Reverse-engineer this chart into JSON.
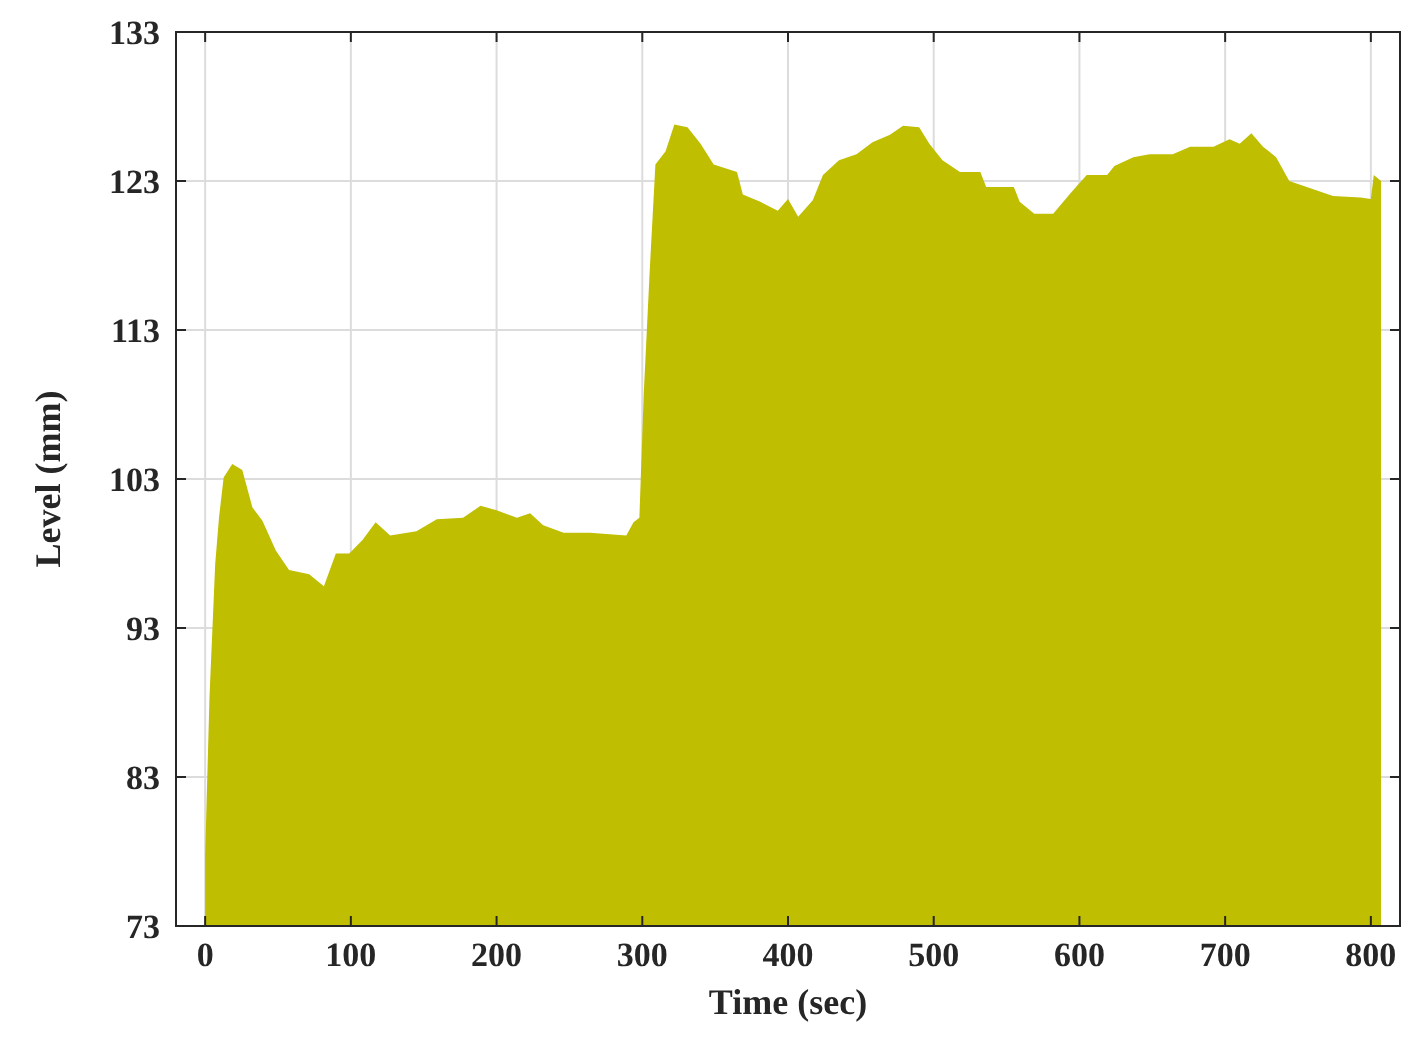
{
  "chart_data": {
    "type": "area",
    "xlabel": "Time (sec)",
    "ylabel": "Level (mm)",
    "xlim": [
      -20,
      820
    ],
    "ylim": [
      73,
      133
    ],
    "xticks": [
      0,
      100,
      200,
      300,
      400,
      500,
      600,
      700,
      800
    ],
    "yticks": [
      73,
      83,
      93,
      103,
      113,
      123,
      133
    ],
    "grid": true,
    "series": [
      {
        "color": "#c0be00",
        "x": [
          0,
          3,
          6.9,
          9.5,
          12.7,
          18.6,
          25.5,
          32.4,
          39.3,
          48.5,
          57.6,
          71.4,
          81.5,
          89.7,
          98.9,
          108,
          117,
          127,
          145,
          159,
          177,
          189,
          200,
          214,
          223,
          232,
          246,
          264,
          289,
          294,
          298,
          301,
          305,
          309,
          316,
          322,
          331,
          340,
          349,
          365,
          369,
          381,
          393,
          400,
          407,
          417,
          424,
          435,
          447,
          458,
          470,
          479,
          490,
          497,
          506,
          518,
          532,
          536,
          555,
          559,
          569,
          582,
          594,
          605,
          619,
          624,
          637,
          648,
          664,
          676,
          692,
          703,
          710,
          718,
          726,
          735,
          744,
          756,
          765,
          774,
          793,
          800,
          802,
          807
        ],
        "values": [
          77.8,
          88.4,
          97.3,
          100.4,
          103.1,
          104.0,
          103.6,
          101.1,
          100.2,
          98.2,
          96.9,
          96.6,
          95.8,
          98.0,
          98.0,
          98.9,
          100.1,
          99.2,
          99.5,
          100.3,
          100.4,
          101.2,
          100.9,
          100.4,
          100.7,
          99.9,
          99.4,
          99.4,
          99.2,
          100.1,
          100.4,
          108.7,
          116.8,
          124.1,
          125.0,
          126.8,
          126.6,
          125.5,
          124.1,
          123.6,
          122.1,
          121.6,
          121.0,
          121.8,
          120.6,
          121.7,
          123.4,
          124.4,
          124.8,
          125.6,
          126.1,
          126.7,
          126.6,
          125.5,
          124.4,
          123.6,
          123.6,
          122.6,
          122.6,
          121.6,
          120.8,
          120.8,
          122.2,
          123.4,
          123.4,
          124.0,
          124.6,
          124.8,
          124.8,
          125.3,
          125.3,
          125.8,
          125.5,
          126.2,
          125.3,
          124.6,
          123.0,
          122.6,
          122.3,
          122.0,
          121.9,
          121.8,
          123.4,
          123.0
        ]
      }
    ]
  }
}
